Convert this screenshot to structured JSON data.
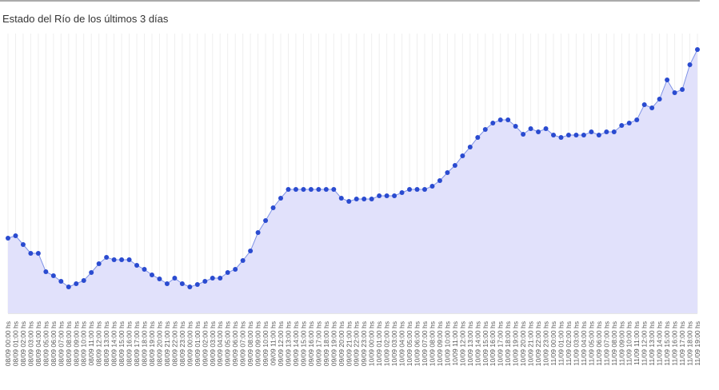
{
  "chart_data": {
    "type": "area",
    "title": "Estado del Río de los últimos 3 días",
    "categories": [
      "08/09 00:00 hs",
      "08/09 01:00 hs",
      "08/09 02:00 hs",
      "08/09 03:00 hs",
      "08/09 04:00 hs",
      "08/09 05:00 hs",
      "08/09 06:00 hs",
      "08/09 07:00 hs",
      "08/09 08:00 hs",
      "08/09 09:00 hs",
      "08/09 10:00 hs",
      "08/09 11:00 hs",
      "08/09 12:00 hs",
      "08/09 13:00 hs",
      "08/09 14:00 hs",
      "08/09 15:00 hs",
      "08/09 16:00 hs",
      "08/09 17:00 hs",
      "08/09 18:00 hs",
      "08/09 19:00 hs",
      "08/09 20:00 hs",
      "08/09 21:00 hs",
      "08/09 22:00 hs",
      "08/09 23:00 hs",
      "09/09 00:00 hs",
      "09/09 01:00 hs",
      "09/09 02:00 hs",
      "09/09 03:00 hs",
      "09/09 04:00 hs",
      "09/09 05:00 hs",
      "09/09 06:00 hs",
      "09/09 07:00 hs",
      "09/09 08:00 hs",
      "09/09 09:00 hs",
      "09/09 10:00 hs",
      "09/09 11:00 hs",
      "09/09 12:00 hs",
      "09/09 13:00 hs",
      "09/09 14:00 hs",
      "09/09 15:00 hs",
      "09/09 16:00 hs",
      "09/09 17:00 hs",
      "09/09 18:00 hs",
      "09/09 19:00 hs",
      "09/09 20:00 hs",
      "09/09 21:00 hs",
      "09/09 22:00 hs",
      "09/09 23:00 hs",
      "10/09 00:00 hs",
      "10/09 01:00 hs",
      "10/09 02:00 hs",
      "10/09 03:00 hs",
      "10/09 04:00 hs",
      "10/09 05:00 hs",
      "10/09 06:00 hs",
      "10/09 07:00 hs",
      "10/09 08:00 hs",
      "10/09 09:00 hs",
      "10/09 10:00 hs",
      "10/09 11:00 hs",
      "10/09 12:00 hs",
      "10/09 13:00 hs",
      "10/09 14:00 hs",
      "10/09 15:00 hs",
      "10/09 16:00 hs",
      "10/09 17:00 hs",
      "10/09 18:00 hs",
      "10/09 19:00 hs",
      "10/09 20:00 hs",
      "10/09 21:00 hs",
      "10/09 22:00 hs",
      "10/09 23:00 hs",
      "11/09 00:00 hs",
      "11/09 01:00 hs",
      "11/09 02:00 hs",
      "11/09 03:00 hs",
      "11/09 04:00 hs",
      "11/09 05:00 hs",
      "11/09 06:00 hs",
      "11/09 07:00 hs",
      "11/09 08:00 hs",
      "11/09 09:00 hs",
      "11/09 10:00 hs",
      "11/09 11:00 hs",
      "11/09 12:00 hs",
      "11/09 13:00 hs",
      "11/09 14:00 hs",
      "11/09 15:00 hs",
      "11/09 16:00 hs",
      "11/09 17:00 hs",
      "11/09 18:00 hs",
      "11/09 19:00 hs"
    ],
    "values": [
      94,
      97,
      86,
      75,
      75,
      52,
      47,
      40,
      33,
      37,
      41,
      51,
      62,
      70,
      67,
      67,
      67,
      60,
      55,
      48,
      43,
      37,
      44,
      37,
      33,
      36,
      40,
      44,
      44,
      51,
      55,
      66,
      78,
      101,
      116,
      132,
      144,
      155,
      155,
      155,
      155,
      155,
      155,
      155,
      144,
      140,
      143,
      143,
      143,
      147,
      147,
      147,
      151,
      155,
      155,
      155,
      159,
      166,
      176,
      185,
      197,
      208,
      220,
      230,
      238,
      242,
      242,
      234,
      224,
      231,
      227,
      231,
      223,
      220,
      223,
      223,
      223,
      227,
      223,
      227,
      227,
      235,
      238,
      242,
      261,
      257,
      268,
      292,
      276,
      280,
      311,
      330
    ],
    "color": "#2a4bd0",
    "fill": "#e1e1fb",
    "ylim": [
      0,
      350
    ]
  }
}
